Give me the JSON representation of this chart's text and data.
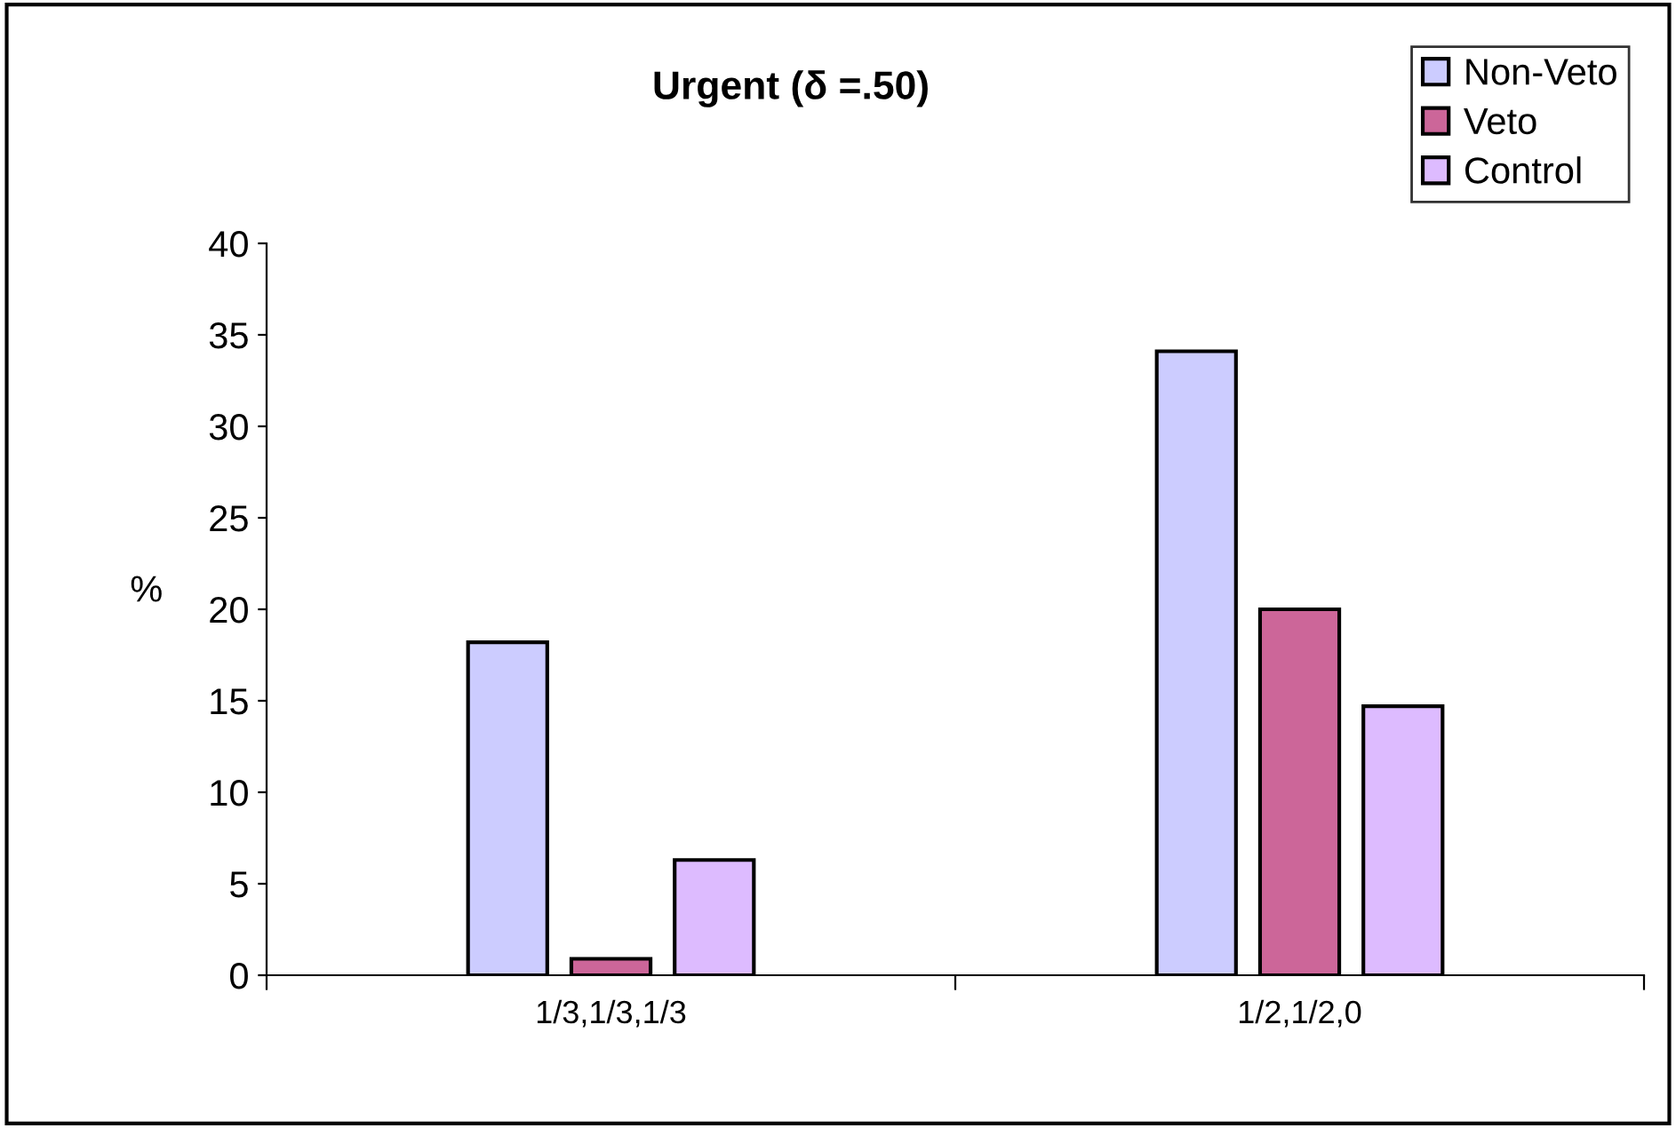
{
  "chart_data": {
    "type": "bar",
    "title": "Urgent (δ =.50)",
    "ylabel": "%",
    "categories": [
      "1/3,1/3,1/3",
      "1/2,1/2,0"
    ],
    "series": [
      {
        "name": "Non-Veto",
        "color": "#ccccff",
        "values": [
          18.2,
          34.1
        ]
      },
      {
        "name": "Veto",
        "color": "#cc6699",
        "values": [
          0.9,
          20.0
        ]
      },
      {
        "name": "Control",
        "color": "#ddbbff",
        "values": [
          6.3,
          14.7
        ]
      }
    ],
    "ylim": [
      0,
      40
    ],
    "yticks": [
      0,
      5,
      10,
      15,
      20,
      25,
      30,
      35,
      40
    ],
    "grid": false,
    "legend": "top right"
  }
}
